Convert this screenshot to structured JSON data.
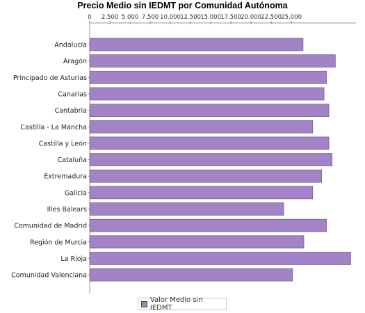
{
  "chart_data": {
    "type": "bar",
    "orientation": "horizontal",
    "title": "Precio Medio sin IEDMT por Comunidad Autónoma",
    "categories": [
      "Andalucía",
      "Aragón",
      "Principado de Asturias",
      "Canarias",
      "Cantabria",
      "Castilla - La Mancha",
      "Castilla y León",
      "Cataluña",
      "Extremadura",
      "Galicia",
      "Illes Balears",
      "Comunidad de Madrid",
      "Región de Murcia",
      "La Rioja",
      "Comunidad Valenciana"
    ],
    "series": [
      {
        "name": "Valor Medio sin IEDMT",
        "values": [
          26400,
          30400,
          29300,
          29000,
          29600,
          27600,
          29600,
          30000,
          28700,
          27600,
          24000,
          29300,
          26500,
          32300,
          25100
        ]
      }
    ],
    "x_ticks": [
      "0",
      "2.500",
      "5.000",
      "7.500",
      "10.000",
      "12.500",
      "15.000",
      "17.500",
      "20.000",
      "22.500",
      "25.000"
    ],
    "xlim": [
      0,
      33000
    ],
    "tick_step": 2500,
    "axis_position": "top",
    "grid": false,
    "legend_position": "bottom",
    "bar_color": "#a383c8",
    "bar_edge_color": "#6a5a82",
    "legend_color": "#a383c8"
  }
}
